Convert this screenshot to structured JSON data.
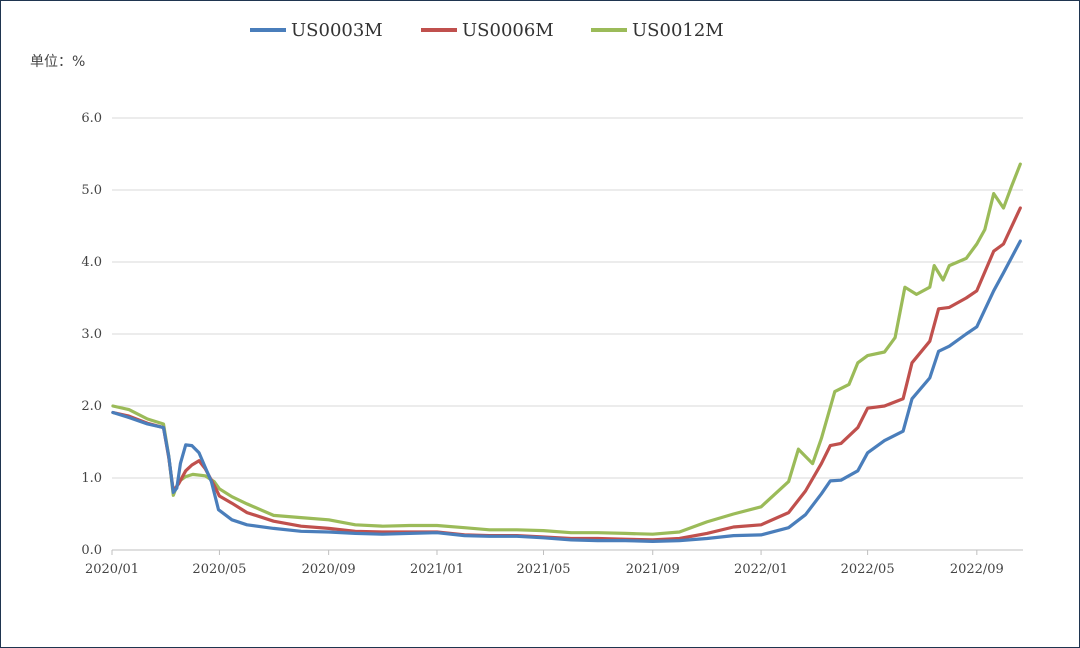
{
  "chart_data": {
    "type": "line",
    "unit_label": "单位：%",
    "ylim": [
      0,
      6
    ],
    "yticks": [
      "0.0",
      "1.0",
      "2.0",
      "3.0",
      "4.0",
      "5.0",
      "6.0"
    ],
    "xlim": [
      "2020-01",
      "2022-10"
    ],
    "xticks": [
      {
        "label": "2020/01",
        "date": "2020-01"
      },
      {
        "label": "2020/05",
        "date": "2020-05"
      },
      {
        "label": "2020/09",
        "date": "2020-09"
      },
      {
        "label": "2021/01",
        "date": "2021-01"
      },
      {
        "label": "2021/05",
        "date": "2021-05"
      },
      {
        "label": "2021/09",
        "date": "2021-09"
      },
      {
        "label": "2022/01",
        "date": "2022-01"
      },
      {
        "label": "2022/05",
        "date": "2022-05"
      },
      {
        "label": "2022/09",
        "date": "2022-09"
      }
    ],
    "grid": true,
    "legend_position": "top",
    "series": [
      {
        "name": "US0003M",
        "color": "#4a7ebb",
        "points": [
          [
            "2020-01-02",
            1.91
          ],
          [
            "2020-01-20",
            1.84
          ],
          [
            "2020-02-10",
            1.75
          ],
          [
            "2020-02-28",
            1.7
          ],
          [
            "2020-03-05",
            1.3
          ],
          [
            "2020-03-10",
            0.8
          ],
          [
            "2020-03-14",
            0.86
          ],
          [
            "2020-03-18",
            1.2
          ],
          [
            "2020-03-24",
            1.46
          ],
          [
            "2020-03-31",
            1.45
          ],
          [
            "2020-04-08",
            1.35
          ],
          [
            "2020-04-15",
            1.15
          ],
          [
            "2020-04-22",
            0.95
          ],
          [
            "2020-04-30",
            0.56
          ],
          [
            "2020-05-15",
            0.42
          ],
          [
            "2020-06-01",
            0.35
          ],
          [
            "2020-07-01",
            0.3
          ],
          [
            "2020-08-01",
            0.26
          ],
          [
            "2020-09-01",
            0.25
          ],
          [
            "2020-10-01",
            0.23
          ],
          [
            "2020-11-01",
            0.22
          ],
          [
            "2020-12-01",
            0.23
          ],
          [
            "2021-01-01",
            0.24
          ],
          [
            "2021-02-01",
            0.2
          ],
          [
            "2021-03-01",
            0.19
          ],
          [
            "2021-04-01",
            0.19
          ],
          [
            "2021-05-01",
            0.17
          ],
          [
            "2021-06-01",
            0.14
          ],
          [
            "2021-07-01",
            0.13
          ],
          [
            "2021-08-01",
            0.13
          ],
          [
            "2021-09-01",
            0.12
          ],
          [
            "2021-10-01",
            0.13
          ],
          [
            "2021-11-01",
            0.16
          ],
          [
            "2021-12-01",
            0.2
          ],
          [
            "2022-01-01",
            0.21
          ],
          [
            "2022-02-01",
            0.31
          ],
          [
            "2022-02-20",
            0.49
          ],
          [
            "2022-03-10",
            0.78
          ],
          [
            "2022-03-20",
            0.96
          ],
          [
            "2022-04-01",
            0.97
          ],
          [
            "2022-04-20",
            1.1
          ],
          [
            "2022-05-01",
            1.35
          ],
          [
            "2022-05-20",
            1.52
          ],
          [
            "2022-06-10",
            1.65
          ],
          [
            "2022-06-20",
            2.1
          ],
          [
            "2022-07-10",
            2.39
          ],
          [
            "2022-07-20",
            2.76
          ],
          [
            "2022-08-01",
            2.83
          ],
          [
            "2022-08-20",
            3.0
          ],
          [
            "2022-09-01",
            3.1
          ],
          [
            "2022-09-20",
            3.6
          ],
          [
            "2022-10-01",
            3.85
          ],
          [
            "2022-10-20",
            4.29
          ]
        ]
      },
      {
        "name": "US0006M",
        "color": "#c0504d",
        "points": [
          [
            "2020-01-02",
            1.91
          ],
          [
            "2020-01-20",
            1.86
          ],
          [
            "2020-02-10",
            1.76
          ],
          [
            "2020-02-28",
            1.7
          ],
          [
            "2020-03-05",
            1.28
          ],
          [
            "2020-03-10",
            0.82
          ],
          [
            "2020-03-16",
            0.92
          ],
          [
            "2020-03-24",
            1.1
          ],
          [
            "2020-03-31",
            1.18
          ],
          [
            "2020-04-08",
            1.24
          ],
          [
            "2020-04-15",
            1.13
          ],
          [
            "2020-04-25",
            0.9
          ],
          [
            "2020-05-01",
            0.75
          ],
          [
            "2020-05-15",
            0.65
          ],
          [
            "2020-06-01",
            0.52
          ],
          [
            "2020-07-01",
            0.4
          ],
          [
            "2020-08-01",
            0.33
          ],
          [
            "2020-09-01",
            0.3
          ],
          [
            "2020-10-01",
            0.26
          ],
          [
            "2020-11-01",
            0.25
          ],
          [
            "2020-12-01",
            0.25
          ],
          [
            "2021-01-01",
            0.25
          ],
          [
            "2021-02-01",
            0.21
          ],
          [
            "2021-03-01",
            0.2
          ],
          [
            "2021-04-01",
            0.2
          ],
          [
            "2021-05-01",
            0.18
          ],
          [
            "2021-06-01",
            0.16
          ],
          [
            "2021-07-01",
            0.16
          ],
          [
            "2021-08-01",
            0.15
          ],
          [
            "2021-09-01",
            0.14
          ],
          [
            "2021-10-01",
            0.16
          ],
          [
            "2021-11-01",
            0.23
          ],
          [
            "2021-12-01",
            0.32
          ],
          [
            "2022-01-01",
            0.35
          ],
          [
            "2022-02-01",
            0.52
          ],
          [
            "2022-02-20",
            0.82
          ],
          [
            "2022-03-10",
            1.2
          ],
          [
            "2022-03-20",
            1.45
          ],
          [
            "2022-04-01",
            1.48
          ],
          [
            "2022-04-20",
            1.7
          ],
          [
            "2022-05-01",
            1.97
          ],
          [
            "2022-05-20",
            2.0
          ],
          [
            "2022-06-10",
            2.1
          ],
          [
            "2022-06-20",
            2.6
          ],
          [
            "2022-07-10",
            2.9
          ],
          [
            "2022-07-20",
            3.35
          ],
          [
            "2022-08-01",
            3.37
          ],
          [
            "2022-08-20",
            3.5
          ],
          [
            "2022-09-01",
            3.6
          ],
          [
            "2022-09-20",
            4.15
          ],
          [
            "2022-10-01",
            4.25
          ],
          [
            "2022-10-20",
            4.75
          ]
        ]
      },
      {
        "name": "US0012M",
        "color": "#9bbb59",
        "points": [
          [
            "2020-01-02",
            2.0
          ],
          [
            "2020-01-20",
            1.95
          ],
          [
            "2020-02-10",
            1.82
          ],
          [
            "2020-02-28",
            1.75
          ],
          [
            "2020-03-05",
            1.3
          ],
          [
            "2020-03-10",
            0.76
          ],
          [
            "2020-03-16",
            0.95
          ],
          [
            "2020-03-24",
            1.02
          ],
          [
            "2020-04-01",
            1.05
          ],
          [
            "2020-04-15",
            1.03
          ],
          [
            "2020-04-25",
            0.95
          ],
          [
            "2020-05-01",
            0.85
          ],
          [
            "2020-05-15",
            0.74
          ],
          [
            "2020-06-01",
            0.64
          ],
          [
            "2020-07-01",
            0.48
          ],
          [
            "2020-08-01",
            0.45
          ],
          [
            "2020-09-01",
            0.42
          ],
          [
            "2020-10-01",
            0.35
          ],
          [
            "2020-11-01",
            0.33
          ],
          [
            "2020-12-01",
            0.34
          ],
          [
            "2021-01-01",
            0.34
          ],
          [
            "2021-02-01",
            0.31
          ],
          [
            "2021-03-01",
            0.28
          ],
          [
            "2021-04-01",
            0.28
          ],
          [
            "2021-05-01",
            0.27
          ],
          [
            "2021-06-01",
            0.24
          ],
          [
            "2021-07-01",
            0.24
          ],
          [
            "2021-08-01",
            0.23
          ],
          [
            "2021-09-01",
            0.22
          ],
          [
            "2021-10-01",
            0.25
          ],
          [
            "2021-11-01",
            0.39
          ],
          [
            "2021-12-01",
            0.5
          ],
          [
            "2022-01-01",
            0.6
          ],
          [
            "2022-02-01",
            0.95
          ],
          [
            "2022-02-12",
            1.4
          ],
          [
            "2022-02-28",
            1.2
          ],
          [
            "2022-03-10",
            1.55
          ],
          [
            "2022-03-25",
            2.2
          ],
          [
            "2022-04-10",
            2.3
          ],
          [
            "2022-04-20",
            2.6
          ],
          [
            "2022-05-01",
            2.7
          ],
          [
            "2022-05-20",
            2.75
          ],
          [
            "2022-06-01",
            2.95
          ],
          [
            "2022-06-12",
            3.65
          ],
          [
            "2022-06-25",
            3.55
          ],
          [
            "2022-07-10",
            3.65
          ],
          [
            "2022-07-15",
            3.95
          ],
          [
            "2022-07-25",
            3.75
          ],
          [
            "2022-08-01",
            3.95
          ],
          [
            "2022-08-20",
            4.05
          ],
          [
            "2022-09-01",
            4.25
          ],
          [
            "2022-09-10",
            4.45
          ],
          [
            "2022-09-20",
            4.95
          ],
          [
            "2022-10-01",
            4.75
          ],
          [
            "2022-10-10",
            5.05
          ],
          [
            "2022-10-20",
            5.36
          ]
        ]
      }
    ]
  }
}
